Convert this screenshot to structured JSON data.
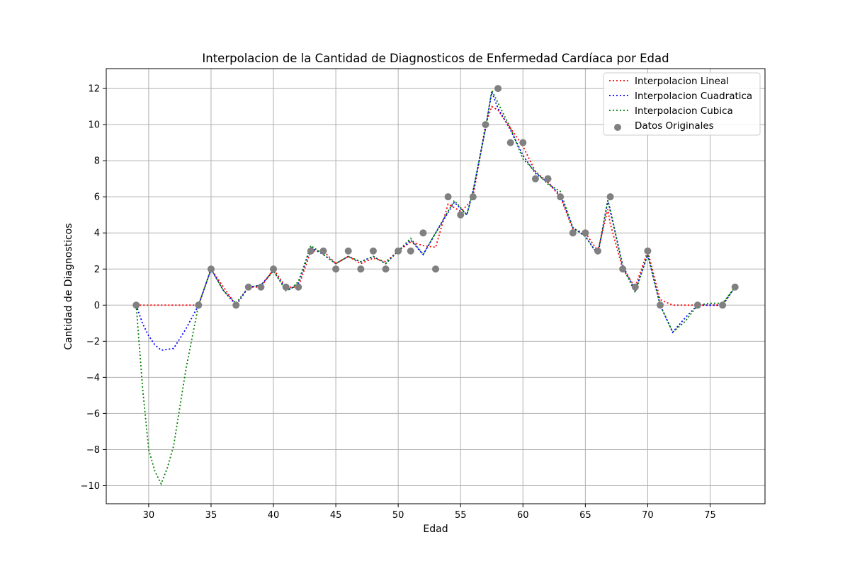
{
  "chart_data": {
    "type": "line",
    "title": "Interpolacion de la Cantidad de Diagnosticos de Enfermedad Cardíaca por Edad",
    "xlabel": "Edad",
    "ylabel": "Cantidad de Diagnosticos",
    "xlim": [
      26.6,
      79.4
    ],
    "ylim": [
      -11,
      13.1
    ],
    "xticks": [
      30,
      35,
      40,
      45,
      50,
      55,
      60,
      65,
      70,
      75
    ],
    "yticks": [
      -10,
      -8,
      -6,
      -4,
      -2,
      0,
      2,
      4,
      6,
      8,
      10,
      12
    ],
    "xtick_labels": [
      "30",
      "35",
      "40",
      "45",
      "50",
      "55",
      "60",
      "65",
      "70",
      "75"
    ],
    "ytick_labels": [
      "−10",
      "−8",
      "−6",
      "−4",
      "−2",
      "0",
      "2",
      "4",
      "6",
      "8",
      "10",
      "12"
    ],
    "grid": true,
    "legend_position": "top-right",
    "series": [
      {
        "name": "Interpolacion Lineal",
        "style": "dotted-line",
        "color": "#ff0000",
        "points": [
          [
            29,
            0
          ],
          [
            30,
            0
          ],
          [
            31,
            0
          ],
          [
            32,
            0
          ],
          [
            33,
            0
          ],
          [
            34,
            0
          ],
          [
            35,
            2
          ],
          [
            36,
            1
          ],
          [
            37,
            0
          ],
          [
            38,
            1
          ],
          [
            39,
            1
          ],
          [
            40,
            2
          ],
          [
            41,
            1
          ],
          [
            41.4,
            1
          ],
          [
            42,
            1
          ],
          [
            43,
            3
          ],
          [
            44,
            3
          ],
          [
            45,
            2.3
          ],
          [
            46,
            2.7
          ],
          [
            47,
            2.3
          ],
          [
            48,
            2.6
          ],
          [
            49,
            2.4
          ],
          [
            50,
            3
          ],
          [
            51,
            3.5
          ],
          [
            52,
            3.3
          ],
          [
            53,
            3.2
          ],
          [
            54,
            5.6
          ],
          [
            55,
            5.2
          ],
          [
            55.5,
            5.5
          ],
          [
            56,
            6
          ],
          [
            57,
            10
          ],
          [
            57.5,
            11
          ],
          [
            58,
            10.8
          ],
          [
            59,
            9.8
          ],
          [
            60,
            8.8
          ],
          [
            61,
            7.4
          ],
          [
            62,
            6.8
          ],
          [
            63,
            6
          ],
          [
            64,
            4.2
          ],
          [
            65,
            4
          ],
          [
            66,
            3
          ],
          [
            66.8,
            5.3
          ],
          [
            67,
            4.5
          ],
          [
            68,
            2
          ],
          [
            69,
            1
          ],
          [
            70,
            3
          ],
          [
            71,
            0.3
          ],
          [
            72,
            0
          ],
          [
            73,
            0
          ],
          [
            74,
            0
          ],
          [
            75,
            0
          ],
          [
            76,
            0
          ],
          [
            77,
            1
          ]
        ]
      },
      {
        "name": "Interpolacion Cuadratica",
        "style": "dotted-line",
        "color": "#0000ff",
        "points": [
          [
            29,
            0
          ],
          [
            29.5,
            -1
          ],
          [
            30,
            -1.7
          ],
          [
            30.5,
            -2.2
          ],
          [
            31,
            -2.5
          ],
          [
            32,
            -2.4
          ],
          [
            33,
            -1.3
          ],
          [
            34,
            0
          ],
          [
            35,
            2
          ],
          [
            36,
            0.8
          ],
          [
            37,
            0
          ],
          [
            38,
            1
          ],
          [
            39,
            1.1
          ],
          [
            40,
            1.9
          ],
          [
            41,
            0.9
          ],
          [
            41.4,
            0.9
          ],
          [
            42,
            1.2
          ],
          [
            43,
            3.2
          ],
          [
            44,
            2.8
          ],
          [
            45,
            2.3
          ],
          [
            46,
            2.7
          ],
          [
            47,
            2.4
          ],
          [
            48,
            2.7
          ],
          [
            49,
            2.3
          ],
          [
            50,
            3
          ],
          [
            51,
            3.6
          ],
          [
            52,
            2.8
          ],
          [
            53,
            4
          ],
          [
            54.5,
            5.7
          ],
          [
            55.5,
            5
          ],
          [
            56,
            6.3
          ],
          [
            57,
            9.8
          ],
          [
            57.5,
            11.8
          ],
          [
            58,
            10.9
          ],
          [
            59,
            9.7
          ],
          [
            60,
            8.3
          ],
          [
            61,
            7.3
          ],
          [
            62,
            6.8
          ],
          [
            63,
            6.1
          ],
          [
            64,
            4.3
          ],
          [
            65,
            3.8
          ],
          [
            66,
            2.8
          ],
          [
            66.8,
            5.8
          ],
          [
            67,
            5.2
          ],
          [
            68,
            2.2
          ],
          [
            69,
            0.8
          ],
          [
            70,
            2.8
          ],
          [
            71,
            0
          ],
          [
            72,
            -1.5
          ],
          [
            73,
            -0.7
          ],
          [
            74,
            0
          ],
          [
            75,
            0
          ],
          [
            76,
            0
          ],
          [
            77,
            1
          ]
        ]
      },
      {
        "name": "Interpolacion Cubica",
        "style": "dotted-line",
        "color": "#008000",
        "points": [
          [
            29,
            0
          ],
          [
            29.5,
            -4.5
          ],
          [
            30,
            -8
          ],
          [
            30.5,
            -9.2
          ],
          [
            31,
            -9.9
          ],
          [
            31.5,
            -9
          ],
          [
            32,
            -7.8
          ],
          [
            33,
            -3.5
          ],
          [
            34,
            0
          ],
          [
            35,
            2
          ],
          [
            36,
            0.8
          ],
          [
            37,
            0.1
          ],
          [
            38,
            1
          ],
          [
            39,
            1.1
          ],
          [
            40,
            1.9
          ],
          [
            41,
            0.8
          ],
          [
            41.4,
            0.9
          ],
          [
            42,
            1.3
          ],
          [
            43,
            3.3
          ],
          [
            44,
            2.8
          ],
          [
            45,
            2.3
          ],
          [
            46,
            2.7
          ],
          [
            47,
            2.4
          ],
          [
            48,
            2.7
          ],
          [
            49,
            2.3
          ],
          [
            50,
            3
          ],
          [
            51,
            3.7
          ],
          [
            52,
            2.8
          ],
          [
            53,
            4
          ],
          [
            54.5,
            5.8
          ],
          [
            55.5,
            5
          ],
          [
            56,
            6.3
          ],
          [
            57,
            9.8
          ],
          [
            57.5,
            11.9
          ],
          [
            58,
            11.2
          ],
          [
            59,
            9.8
          ],
          [
            60,
            8.1
          ],
          [
            61,
            7.4
          ],
          [
            62,
            6.7
          ],
          [
            63,
            6.3
          ],
          [
            64,
            4.3
          ],
          [
            65,
            3.8
          ],
          [
            66,
            2.8
          ],
          [
            66.8,
            5.8
          ],
          [
            67,
            5.3
          ],
          [
            68,
            2.1
          ],
          [
            69,
            0.7
          ],
          [
            70,
            2.8
          ],
          [
            71,
            0
          ],
          [
            72,
            -1.5
          ],
          [
            73,
            -0.9
          ],
          [
            74,
            0
          ],
          [
            75,
            0.1
          ],
          [
            76,
            0.1
          ],
          [
            77,
            1
          ]
        ]
      }
    ],
    "scatter": {
      "name": "Datos Originales",
      "color": "#808080",
      "points": [
        [
          29,
          0
        ],
        [
          34,
          0
        ],
        [
          35,
          2
        ],
        [
          37,
          0
        ],
        [
          38,
          1
        ],
        [
          39,
          1
        ],
        [
          40,
          2
        ],
        [
          41,
          1
        ],
        [
          42,
          1
        ],
        [
          43,
          3
        ],
        [
          44,
          3
        ],
        [
          45,
          2
        ],
        [
          46,
          3
        ],
        [
          47,
          2
        ],
        [
          48,
          3
        ],
        [
          49,
          2
        ],
        [
          50,
          3
        ],
        [
          51,
          3
        ],
        [
          52,
          4
        ],
        [
          53,
          2
        ],
        [
          54,
          6
        ],
        [
          55,
          5
        ],
        [
          56,
          6
        ],
        [
          57,
          10
        ],
        [
          58,
          12
        ],
        [
          59,
          9
        ],
        [
          60,
          9
        ],
        [
          61,
          7
        ],
        [
          62,
          7
        ],
        [
          63,
          6
        ],
        [
          64,
          4
        ],
        [
          65,
          4
        ],
        [
          66,
          3
        ],
        [
          67,
          6
        ],
        [
          68,
          2
        ],
        [
          69,
          1
        ],
        [
          70,
          3
        ],
        [
          71,
          0
        ],
        [
          74,
          0
        ],
        [
          76,
          0
        ],
        [
          77,
          1
        ]
      ]
    }
  }
}
